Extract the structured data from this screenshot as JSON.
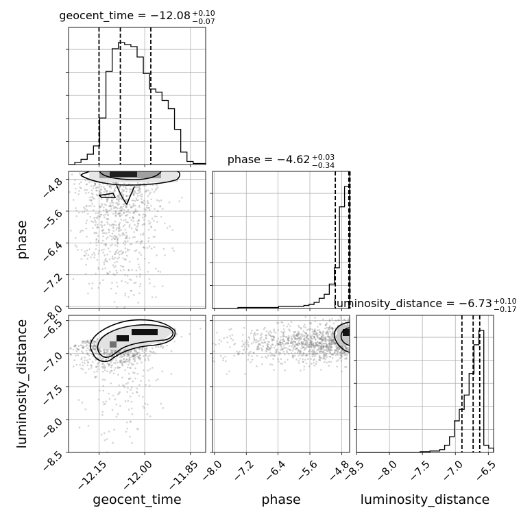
{
  "chart_data": {
    "type": "corner",
    "parameters": [
      "geocent_time",
      "phase",
      "luminosity_distance"
    ],
    "axis_labels": {
      "x": [
        "geocent_time",
        "phase",
        "luminosity_distance"
      ],
      "y": [
        "",
        "phase",
        "luminosity_distance"
      ]
    },
    "ranges": {
      "geocent_time": [
        -12.25,
        -11.8
      ],
      "phase": [
        -8.05,
        -4.6
      ],
      "luminosity_distance": [
        -8.5,
        -6.42
      ]
    },
    "ticks": {
      "geocent_time": {
        "values": [
          -12.15,
          -12.0,
          -11.85
        ],
        "labels": [
          "−12.15",
          "−12.00",
          "−11.85"
        ]
      },
      "phase": {
        "values": [
          -8.0,
          -7.2,
          -6.4,
          -5.6,
          -4.8
        ],
        "labels": [
          "−8.0",
          "−7.2",
          "−6.4",
          "−5.6",
          "−4.8"
        ]
      },
      "luminosity_distance": {
        "values": [
          -8.5,
          -8.0,
          -7.5,
          -7.0,
          -6.5
        ],
        "labels": [
          "−8.5",
          "−8.0",
          "−7.5",
          "−7.0",
          "−6.5"
        ]
      }
    },
    "titles": [
      {
        "param": "geocent_time",
        "text": "geocent_time = −12.08",
        "sup": "+0.10",
        "sub": "−0.07"
      },
      {
        "param": "phase",
        "text": "phase = −4.62",
        "sup": "+0.03",
        "sub": "−0.34"
      },
      {
        "param": "luminosity_distance",
        "text": "luminosity_distance = −6.73",
        "sup": "+0.10",
        "sub": "−0.17"
      }
    ],
    "quantiles": {
      "geocent_time": [
        -12.15,
        -12.08,
        -11.98
      ],
      "phase": [
        -4.96,
        -4.62,
        -4.59
      ],
      "luminosity_distance": [
        -6.9,
        -6.73,
        -6.63
      ]
    },
    "histograms": {
      "geocent_time": {
        "range": [
          -12.25,
          -11.8
        ],
        "counts": [
          0,
          2,
          5,
          10,
          18,
          45,
          90,
          112,
          118,
          116,
          114,
          104,
          88,
          73,
          70,
          62,
          54,
          34,
          12,
          3,
          1,
          1
        ]
      },
      "phase": {
        "range": [
          -8.05,
          -4.6
        ],
        "counts": [
          0,
          0,
          0,
          0,
          0,
          1,
          1,
          1,
          1,
          1,
          1,
          1,
          1,
          2,
          2,
          2,
          2,
          2,
          3,
          4,
          6,
          10,
          14,
          24,
          40,
          100,
          120
        ]
      },
      "luminosity_distance": {
        "range": [
          -8.5,
          -6.42
        ],
        "counts": [
          0,
          0,
          0,
          0,
          0,
          0,
          0,
          0,
          0,
          0,
          0,
          0,
          0,
          1,
          1,
          2,
          2,
          4,
          10,
          22,
          44,
          60,
          80,
          110,
          150,
          170,
          10,
          6
        ]
      }
    },
    "grid": true,
    "colors": {
      "line": "#000000",
      "scatter": "#808080",
      "grid": "#b0b0b0"
    }
  }
}
